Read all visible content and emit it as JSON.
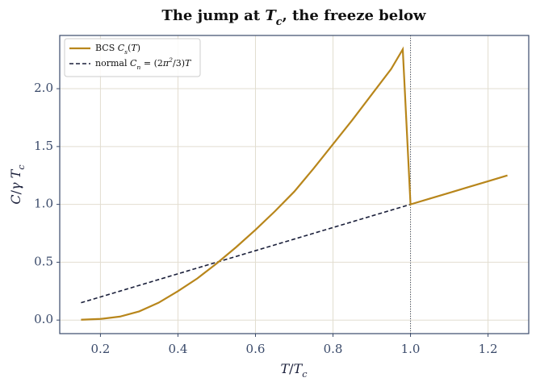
{
  "chart_data": {
    "type": "line",
    "title": "The jump at $T_c$, the freeze below",
    "x_label": "$T/T_c$",
    "y_label": "$C/\\gamma T_c$",
    "x": [
      0.15,
      0.2,
      0.25,
      0.3,
      0.35,
      0.4,
      0.45,
      0.5,
      0.55,
      0.6,
      0.65,
      0.7,
      0.75,
      0.8,
      0.85,
      0.9,
      0.95,
      0.98,
      1.0,
      1.05,
      1.1,
      1.15,
      1.2,
      1.25
    ],
    "series": [
      {
        "name": "BCS $C_s(T)$",
        "color": "#b8861b",
        "dash": false,
        "values": [
          0.003,
          0.01,
          0.03,
          0.075,
          0.15,
          0.25,
          0.36,
          0.49,
          0.63,
          0.78,
          0.94,
          1.11,
          1.31,
          1.52,
          1.73,
          1.95,
          2.17,
          2.34,
          1.0,
          1.05,
          1.1,
          1.15,
          1.2,
          1.25
        ]
      },
      {
        "name": "normal $C_n = (2\\pi^2/3)T$",
        "color": "#1a1f3a",
        "dash": true,
        "values": [
          0.15,
          0.2,
          0.25,
          0.3,
          0.35,
          0.4,
          0.45,
          0.5,
          0.55,
          0.6,
          0.65,
          0.7,
          0.75,
          0.8,
          0.85,
          0.9,
          0.95,
          0.98,
          1.0,
          1.05,
          1.1,
          1.15,
          1.2,
          1.25
        ]
      }
    ],
    "vline": 1.0,
    "xlim": [
      0.095,
      1.305
    ],
    "ylim": [
      -0.117,
      2.46
    ],
    "xticks": [
      0.2,
      0.4,
      0.6,
      0.8,
      {
        "value": 1.0,
        "label": "1.0"
      },
      1.2
    ],
    "yticks": [
      {
        "value": 0,
        "label": "0.0"
      },
      0.5,
      {
        "value": 1,
        "label": "1.0"
      },
      1.5,
      {
        "value": 2,
        "label": "2.0"
      }
    ],
    "grid": true,
    "legend": "upper left"
  }
}
